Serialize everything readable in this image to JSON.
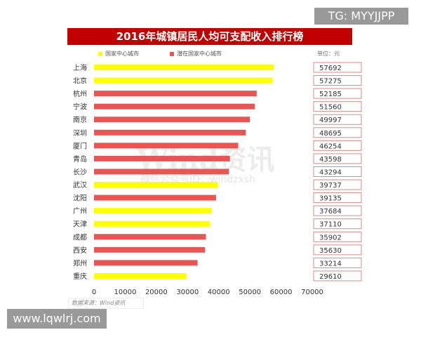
{
  "chart_data": {
    "type": "bar",
    "orientation": "horizontal",
    "title": "2016年城镇居民人均可支配收入排行榜",
    "unit": "单位：元",
    "legend": [
      {
        "name": "国家中心城市",
        "color": "#ffff00"
      },
      {
        "name": "潜在国家中心城市",
        "color": "#e85555"
      }
    ],
    "categories": [
      "上海",
      "北京",
      "杭州",
      "宁波",
      "南京",
      "深圳",
      "厦门",
      "青岛",
      "长沙",
      "武汉",
      "沈阳",
      "广州",
      "天津",
      "成都",
      "西安",
      "郑州",
      "重庆"
    ],
    "values": [
      57692,
      57275,
      52185,
      51560,
      49997,
      48695,
      46254,
      43598,
      43294,
      39737,
      39135,
      37684,
      37110,
      35902,
      35630,
      33214,
      29610
    ],
    "group": [
      0,
      0,
      1,
      1,
      1,
      1,
      1,
      1,
      1,
      0,
      1,
      0,
      0,
      1,
      1,
      1,
      0
    ],
    "xlim": [
      0,
      70000
    ],
    "xticks": [
      0,
      10000,
      20000,
      30000,
      40000,
      50000,
      60000,
      70000
    ],
    "grid": false,
    "legend_position": "top",
    "source": "数据来源：Wind资讯"
  },
  "watermark": {
    "brand": "Wind资讯",
    "sub": "微信公众号ID：windzxsh"
  },
  "overlays": {
    "tag": "TG: MYYJJPP",
    "url": "www.lqwlrj.com"
  }
}
